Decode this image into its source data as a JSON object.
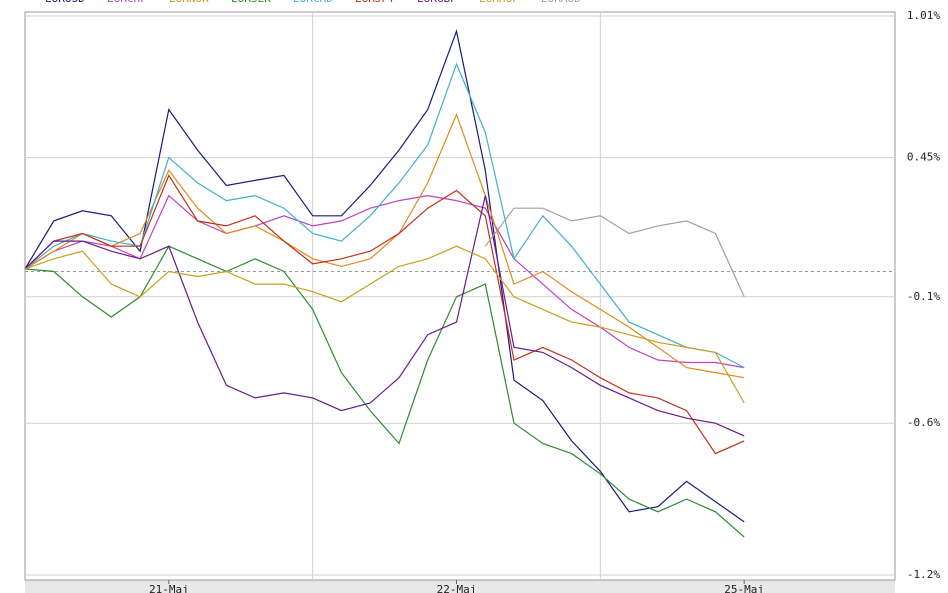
{
  "chart_data": {
    "type": "line",
    "xlim": [
      0,
      3
    ],
    "xticks": [
      {
        "value": 0.5,
        "label": "21-Maj"
      },
      {
        "value": 1.5,
        "label": "22-Maj"
      },
      {
        "value": 2.5,
        "label": "25-Maj"
      }
    ],
    "ylim": [
      -1.2,
      1.01
    ],
    "yticks": [
      {
        "value": 1.01,
        "label": "1.01%"
      },
      {
        "value": 0.45,
        "label": "0.45%"
      },
      {
        "value": -0.1,
        "label": "-0.1%"
      },
      {
        "value": -0.6,
        "label": "-0.6%"
      },
      {
        "value": -1.2,
        "label": "-1.2%"
      }
    ],
    "reference_line": 0,
    "grid": true,
    "x": [
      0,
      0.1,
      0.2,
      0.3,
      0.4,
      0.5,
      0.6,
      0.7,
      0.8,
      0.9,
      1.0,
      1.1,
      1.2,
      1.3,
      1.4,
      1.5,
      1.6,
      1.7,
      1.8,
      1.9,
      2.0,
      2.1,
      2.2,
      2.3,
      2.4,
      2.5
    ],
    "series": [
      {
        "name": "EURUSD",
        "color": "#1a1a80",
        "values": [
          0.01,
          0.2,
          0.24,
          0.22,
          0.08,
          0.64,
          0.48,
          0.34,
          0.36,
          0.38,
          0.22,
          0.22,
          0.34,
          0.48,
          0.64,
          0.95,
          0.4,
          -0.43,
          -0.51,
          -0.67,
          -0.79,
          -0.95,
          -0.93,
          -0.83,
          -0.91,
          -0.99
        ]
      },
      {
        "name": "EURCHF",
        "color": "#c040c0",
        "values": [
          0.01,
          0.08,
          0.12,
          0.1,
          0.05,
          0.3,
          0.2,
          0.15,
          0.18,
          0.22,
          0.18,
          0.2,
          0.25,
          0.28,
          0.3,
          0.28,
          0.25,
          0.05,
          -0.05,
          -0.15,
          -0.22,
          -0.3,
          -0.35,
          -0.36,
          -0.36,
          -0.38
        ]
      },
      {
        "name": "EURNOK",
        "color": "#e08a1a",
        "values": [
          0.01,
          0.08,
          0.15,
          0.1,
          0.15,
          0.4,
          0.25,
          0.15,
          0.18,
          0.12,
          0.05,
          0.02,
          0.05,
          0.15,
          0.35,
          0.62,
          0.3,
          -0.05,
          0.0,
          -0.08,
          -0.15,
          -0.22,
          -0.3,
          -0.38,
          -0.4,
          -0.42
        ]
      },
      {
        "name": "EURSEK",
        "color": "#2e8b2e",
        "values": [
          0.01,
          0.0,
          -0.1,
          -0.18,
          -0.1,
          0.1,
          0.05,
          0.0,
          0.05,
          0.0,
          -0.15,
          -0.4,
          -0.55,
          -0.68,
          -0.35,
          -0.1,
          -0.05,
          -0.6,
          -0.68,
          -0.72,
          -0.8,
          -0.9,
          -0.95,
          -0.9,
          -0.95,
          -1.05
        ]
      },
      {
        "name": "EURCAD",
        "color": "#3fb0d0",
        "values": [
          0.01,
          0.1,
          0.15,
          0.12,
          0.1,
          0.45,
          0.35,
          0.28,
          0.3,
          0.25,
          0.15,
          0.12,
          0.22,
          0.35,
          0.5,
          0.82,
          0.55,
          0.05,
          0.22,
          0.1,
          -0.05,
          -0.2,
          -0.25,
          -0.3,
          -0.32,
          -0.38
        ]
      },
      {
        "name": "EURJPY",
        "color": "#c0301a",
        "values": [
          0.01,
          0.12,
          0.15,
          0.1,
          0.1,
          0.38,
          0.2,
          0.18,
          0.22,
          0.12,
          0.03,
          0.05,
          0.08,
          0.15,
          0.25,
          0.32,
          0.22,
          -0.35,
          -0.3,
          -0.35,
          -0.42,
          -0.48,
          -0.5,
          -0.55,
          -0.72,
          -0.67
        ]
      },
      {
        "name": "EURGBP",
        "color": "#6a1a8a",
        "values": [
          0.01,
          0.12,
          0.12,
          0.08,
          0.05,
          0.1,
          -0.2,
          -0.45,
          -0.5,
          -0.48,
          -0.5,
          -0.55,
          -0.52,
          -0.42,
          -0.25,
          -0.2,
          0.3,
          -0.3,
          -0.32,
          -0.38,
          -0.45,
          -0.5,
          -0.55,
          -0.58,
          -0.6,
          -0.65
        ]
      },
      {
        "name": "EURHUF",
        "color": "#c8a020",
        "values": [
          0.01,
          0.05,
          0.08,
          -0.05,
          -0.1,
          0.0,
          -0.02,
          0.0,
          -0.05,
          -0.05,
          -0.08,
          -0.12,
          -0.05,
          0.02,
          0.05,
          0.1,
          0.05,
          -0.1,
          -0.15,
          -0.2,
          -0.22,
          -0.25,
          -0.28,
          -0.3,
          -0.32,
          -0.52
        ]
      },
      {
        "name": "EURAUD",
        "color": "#a0a0a0",
        "values": [
          null,
          null,
          null,
          null,
          null,
          null,
          null,
          null,
          null,
          null,
          null,
          null,
          null,
          null,
          null,
          null,
          0.1,
          0.25,
          0.25,
          0.2,
          0.22,
          0.15,
          0.18,
          0.2,
          0.15,
          -0.1
        ]
      }
    ]
  }
}
